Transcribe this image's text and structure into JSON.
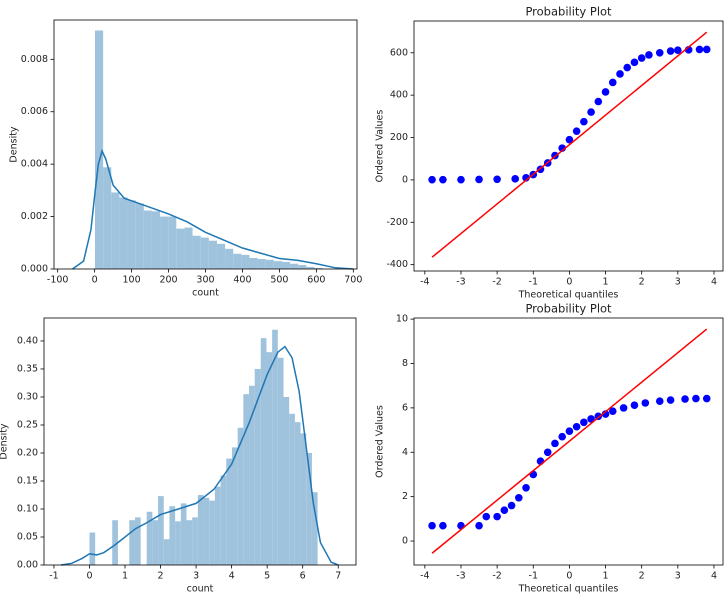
{
  "chart_data": [
    {
      "type": "histogram",
      "xlabel": "count",
      "ylabel": "Density",
      "color": "#9fc2dd",
      "bins": [
        1,
        23,
        45,
        67,
        89,
        111,
        133,
        155,
        177,
        199,
        221,
        243,
        265,
        287,
        309,
        331,
        353,
        375,
        397,
        419,
        441,
        463,
        485,
        507,
        529,
        551,
        573,
        595,
        617
      ],
      "values": [
        0.0091,
        0.00388,
        0.00292,
        0.00273,
        0.00262,
        0.0025,
        0.00223,
        0.0022,
        0.002,
        0.002,
        0.00154,
        0.00158,
        0.00127,
        0.0012,
        0.00108,
        0.00096,
        0.00077,
        0.00058,
        0.00054,
        0.00042,
        0.00038,
        0.00035,
        0.0003,
        0.00027,
        0.0002,
        0.00015,
        8e-05,
        4e-05
      ],
      "kde": {
        "color": "#1f77b4",
        "x": [
          -60,
          -30,
          -10,
          0,
          10,
          20,
          30,
          50,
          80,
          120,
          160,
          200,
          250,
          300,
          350,
          400,
          450,
          500,
          550,
          600,
          650,
          700
        ],
        "values": [
          0,
          0.0003,
          0.0015,
          0.0028,
          0.004,
          0.0045,
          0.0042,
          0.0032,
          0.0027,
          0.0025,
          0.0023,
          0.0021,
          0.0018,
          0.0014,
          0.0011,
          0.0008,
          0.0006,
          0.0004,
          0.00033,
          0.0002,
          5e-05,
          0
        ]
      },
      "xlim": [
        -110,
        710
      ],
      "ylim": [
        0,
        0.0095
      ],
      "xticks": [
        -100,
        0,
        100,
        200,
        300,
        400,
        500,
        600,
        700
      ],
      "yticks": [
        {
          "value": 0,
          "label": "0.000"
        },
        {
          "value": 0.002,
          "label": "0.002"
        },
        {
          "value": 0.004,
          "label": "0.004"
        },
        {
          "value": 0.006,
          "label": "0.006"
        },
        {
          "value": 0.008,
          "label": "0.008"
        }
      ]
    },
    {
      "type": "scatter",
      "title": "Probability Plot",
      "xlabel": "Theoretical quantiles",
      "ylabel": "Ordered Values",
      "color": "#0000ff",
      "x": [
        -3.8,
        -3.5,
        -3.0,
        -2.5,
        -2.0,
        -1.5,
        -1.2,
        -1.0,
        -0.8,
        -0.6,
        -0.4,
        -0.2,
        0,
        0.2,
        0.4,
        0.6,
        0.8,
        1.0,
        1.2,
        1.4,
        1.6,
        1.8,
        2.0,
        2.2,
        2.5,
        2.8,
        3.0,
        3.3,
        3.6,
        3.8
      ],
      "values": [
        1,
        1,
        1,
        2,
        3,
        5,
        10,
        25,
        50,
        80,
        115,
        150,
        190,
        230,
        275,
        320,
        370,
        415,
        460,
        500,
        530,
        555,
        575,
        590,
        600,
        608,
        612,
        614,
        616,
        616
      ],
      "fit": {
        "color": "#ff0000",
        "x": [
          -3.8,
          3.8
        ],
        "values": [
          -365,
          697
        ]
      },
      "xlim": [
        -4.3,
        4.25
      ],
      "ylim": [
        -430,
        750
      ],
      "xticks": [
        -4,
        -3,
        -2,
        -1,
        0,
        1,
        2,
        3,
        4
      ],
      "yticks": [
        -400,
        -200,
        0,
        200,
        400,
        600
      ]
    },
    {
      "type": "histogram",
      "xlabel": "count",
      "ylabel": "Density",
      "color": "#9fc2dd",
      "bins": [
        0,
        0.16,
        0.32,
        0.48,
        0.64,
        0.8,
        0.96,
        1.12,
        1.28,
        1.44,
        1.61,
        1.77,
        1.93,
        2.09,
        2.25,
        2.41,
        2.57,
        2.73,
        2.89,
        3.05,
        3.21,
        3.37,
        3.53,
        3.69,
        3.85,
        4.01,
        4.17,
        4.33,
        4.49,
        4.65,
        4.82,
        4.98,
        5.14,
        5.3,
        5.46,
        5.62,
        5.78,
        5.94,
        6.1,
        6.26,
        6.42
      ],
      "values": [
        0.058,
        0,
        0,
        0,
        0.08,
        0,
        0,
        0.08,
        0.085,
        0,
        0.095,
        0.08,
        0.123,
        0.046,
        0.105,
        0.078,
        0.11,
        0.08,
        0.085,
        0.125,
        0.12,
        0.115,
        0.14,
        0.16,
        0.19,
        0.21,
        0.245,
        0.305,
        0.32,
        0.35,
        0.405,
        0.38,
        0.42,
        0.37,
        0.3,
        0.27,
        0.255,
        0.235,
        0.2,
        0.13
      ],
      "kde": {
        "color": "#1f77b4",
        "x": [
          -0.8,
          -0.5,
          -0.2,
          0,
          0.2,
          0.4,
          0.7,
          1.0,
          1.3,
          1.6,
          2.0,
          2.5,
          3.0,
          3.5,
          4.0,
          4.5,
          5.0,
          5.3,
          5.5,
          5.7,
          5.9,
          6.1,
          6.3,
          6.5,
          6.8,
          7.0
        ],
        "values": [
          0,
          0.003,
          0.012,
          0.02,
          0.018,
          0.022,
          0.035,
          0.05,
          0.065,
          0.075,
          0.09,
          0.1,
          0.11,
          0.135,
          0.18,
          0.255,
          0.34,
          0.38,
          0.39,
          0.37,
          0.31,
          0.21,
          0.11,
          0.04,
          0.005,
          0
        ]
      },
      "xlim": [
        -1.28,
        7.5
      ],
      "ylim": [
        0,
        0.441
      ],
      "xticks": [
        -1,
        0,
        1,
        2,
        3,
        4,
        5,
        6,
        7
      ],
      "yticks": [
        {
          "value": 0,
          "label": "0.00"
        },
        {
          "value": 0.05,
          "label": "0.05"
        },
        {
          "value": 0.1,
          "label": "0.10"
        },
        {
          "value": 0.15,
          "label": "0.15"
        },
        {
          "value": 0.2,
          "label": "0.20"
        },
        {
          "value": 0.25,
          "label": "0.25"
        },
        {
          "value": 0.3,
          "label": "0.30"
        },
        {
          "value": 0.35,
          "label": "0.35"
        },
        {
          "value": 0.4,
          "label": "0.40"
        }
      ]
    },
    {
      "type": "scatter",
      "title": "Probability Plot",
      "xlabel": "Theoretical quantiles",
      "ylabel": "Ordered Values",
      "color": "#0000ff",
      "x": [
        -3.8,
        -3.5,
        -3.0,
        -2.5,
        -2.3,
        -2.0,
        -1.8,
        -1.6,
        -1.4,
        -1.2,
        -1.0,
        -0.8,
        -0.6,
        -0.4,
        -0.2,
        0,
        0.2,
        0.4,
        0.6,
        0.8,
        1.0,
        1.2,
        1.5,
        1.8,
        2.1,
        2.5,
        2.8,
        3.2,
        3.5,
        3.8
      ],
      "values": [
        0.69,
        0.69,
        0.69,
        0.69,
        1.1,
        1.1,
        1.39,
        1.6,
        1.95,
        2.4,
        3.0,
        3.6,
        4.0,
        4.4,
        4.7,
        4.95,
        5.15,
        5.35,
        5.5,
        5.62,
        5.72,
        5.85,
        6.0,
        6.12,
        6.22,
        6.3,
        6.35,
        6.4,
        6.42,
        6.42
      ],
      "fit": {
        "color": "#ff0000",
        "x": [
          -3.8,
          3.8
        ],
        "values": [
          -0.55,
          9.55
        ]
      },
      "xlim": [
        -4.3,
        4.25
      ],
      "ylim": [
        -1.08,
        10.05
      ],
      "xticks": [
        -4,
        -3,
        -2,
        -1,
        0,
        1,
        2,
        3,
        4
      ],
      "yticks": [
        0,
        2,
        4,
        6,
        8,
        10
      ]
    }
  ]
}
